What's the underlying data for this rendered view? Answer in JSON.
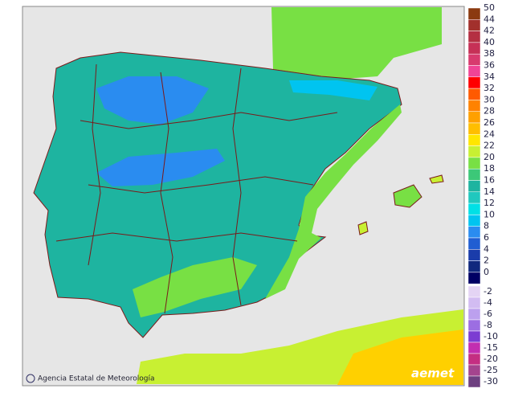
{
  "credit": "Agencia Estatal de Meteorología",
  "logo": "aemet",
  "legend": {
    "upper": [
      {
        "label": "50",
        "color": "#8b3a10"
      },
      {
        "label": "44",
        "color": "#a2302c"
      },
      {
        "label": "42",
        "color": "#b42f42"
      },
      {
        "label": "40",
        "color": "#c63056"
      },
      {
        "label": "38",
        "color": "#d83a6e"
      },
      {
        "label": "36",
        "color": "#f04496"
      },
      {
        "label": "34",
        "color": "#ff0000"
      },
      {
        "label": "32",
        "color": "#ff5a00"
      },
      {
        "label": "30",
        "color": "#ff8200"
      },
      {
        "label": "28",
        "color": "#ffa000"
      },
      {
        "label": "26",
        "color": "#ffbe00"
      },
      {
        "label": "24",
        "color": "#ffe600"
      },
      {
        "label": "22",
        "color": "#c8f032"
      },
      {
        "label": "20",
        "color": "#78e044"
      },
      {
        "label": "18",
        "color": "#3cc878"
      },
      {
        "label": "16",
        "color": "#1eb4a0"
      },
      {
        "label": "14",
        "color": "#20c8be"
      },
      {
        "label": "12",
        "color": "#00e0e6"
      },
      {
        "label": "10",
        "color": "#00c4f0"
      },
      {
        "label": "8",
        "color": "#2a8cf0"
      },
      {
        "label": "6",
        "color": "#205ed2"
      },
      {
        "label": "4",
        "color": "#1a3caa"
      },
      {
        "label": "2",
        "color": "#10287e"
      },
      {
        "label": "0",
        "color": "#000064"
      }
    ],
    "lower": [
      {
        "label": "-2",
        "color": "#e4d4f4"
      },
      {
        "label": "-4",
        "color": "#d2bcf2"
      },
      {
        "label": "-6",
        "color": "#bca0ee"
      },
      {
        "label": "-8",
        "color": "#9c6ee2"
      },
      {
        "label": "-10",
        "color": "#7c3cd2"
      },
      {
        "label": "-15",
        "color": "#c22eb0"
      },
      {
        "label": "-20",
        "color": "#c42e82"
      },
      {
        "label": "-25",
        "color": "#a4448e"
      },
      {
        "label": "-30",
        "color": "#6e4080"
      }
    ]
  }
}
